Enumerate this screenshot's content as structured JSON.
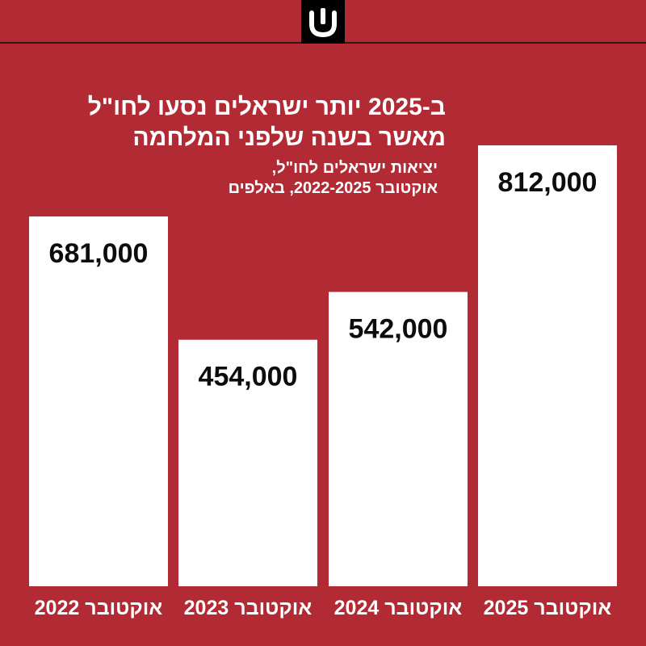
{
  "header": {
    "logo_icon": "ynet-logo-icon"
  },
  "colors": {
    "background": "#b22a33",
    "bar": "#ffffff",
    "value_text": "#0d0d0d",
    "label_text": "#ffffff"
  },
  "chart_data": {
    "type": "bar",
    "title_lines": [
      "ב-2025 יותר ישראלים נסעו לחו\"ל",
      "מאשר בשנה שלפני המלחמה"
    ],
    "subtitle_lines": [
      "יציאות ישראלים לחו\"ל,",
      "אוקטובר 2022-2025, באלפים"
    ],
    "categories": [
      "אוקטובר 2022",
      "אוקטובר 2023",
      "אוקטובר 2024",
      "אוקטובר 2025"
    ],
    "values": [
      681000,
      454000,
      542000,
      812000
    ],
    "value_labels": [
      "681,000",
      "454,000",
      "542,000",
      "812,000"
    ],
    "ylim": [
      0,
      1000000
    ],
    "grid": false,
    "legend": "none"
  }
}
